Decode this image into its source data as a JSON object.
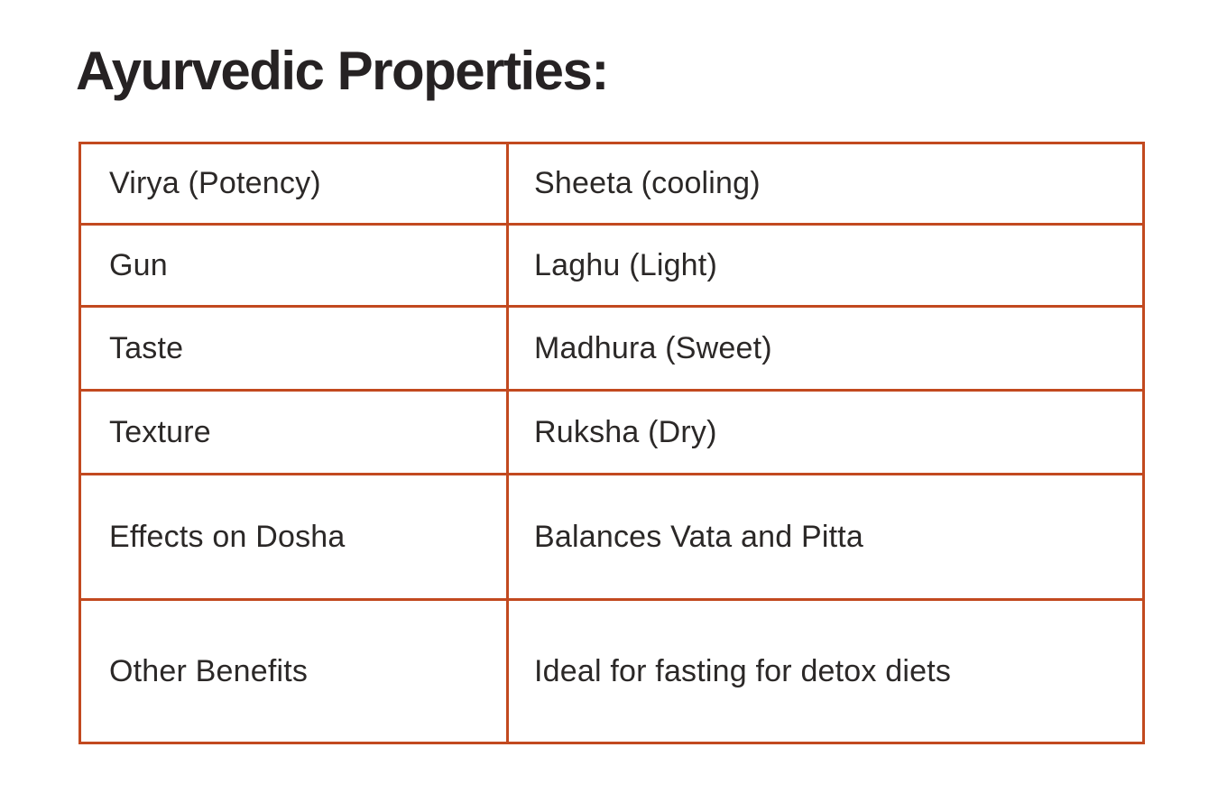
{
  "header": {
    "title": "Ayurvedic Properties:"
  },
  "table": {
    "rows": [
      {
        "property": "Virya (Potency)",
        "value": "Sheeta (cooling)"
      },
      {
        "property": "Gun",
        "value": "Laghu (Light)"
      },
      {
        "property": "Taste",
        "value": "Madhura (Sweet)"
      },
      {
        "property": "Texture",
        "value": "Ruksha (Dry)"
      },
      {
        "property": "Effects on Dosha",
        "value": "Balances Vata and Pitta"
      },
      {
        "property": "Other Benefits",
        "value": "Ideal for fasting for detox diets"
      }
    ]
  },
  "colors": {
    "table_border": "#c2491f",
    "text": "#2b2827",
    "title": "#262223",
    "background": "#ffffff"
  }
}
